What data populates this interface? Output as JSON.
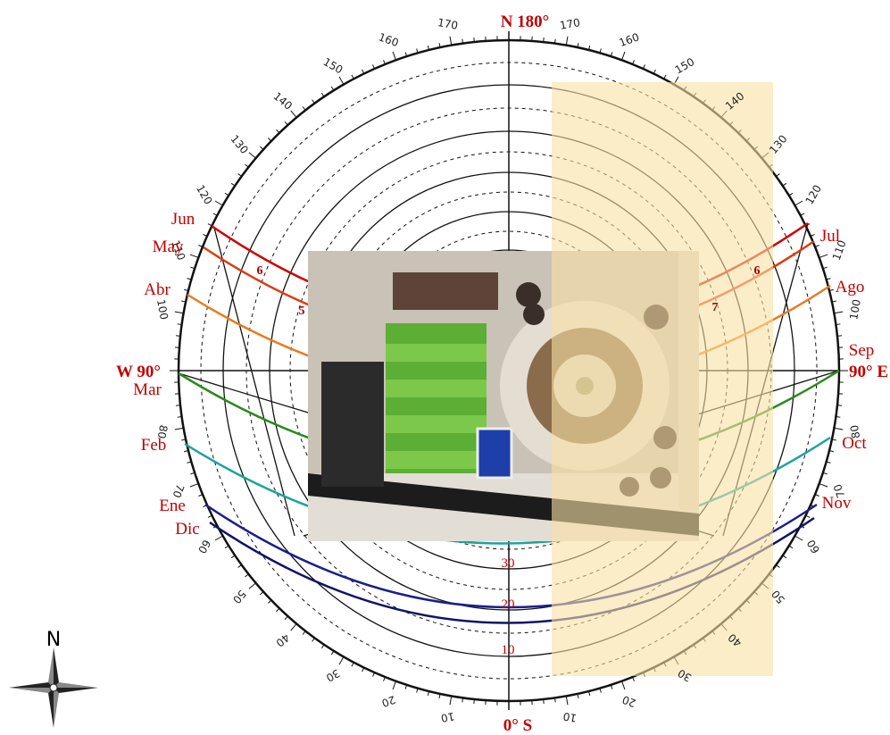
{
  "compass": {
    "north": "N 180°",
    "south": "0° S",
    "west": "W 90°",
    "east": "90° E"
  },
  "months_left": [
    "Jun",
    "May",
    "Abr",
    "Mar",
    "Feb",
    "Ene",
    "Dic"
  ],
  "months_right": [
    "Jul",
    "Ago",
    "Sep",
    "Oct",
    "Nov"
  ],
  "azimuth_labels": [
    10,
    20,
    30,
    40,
    50,
    60,
    70,
    80,
    100,
    110,
    120,
    130,
    140,
    150,
    160,
    170
  ],
  "altitude_labels": [
    10,
    20,
    30
  ],
  "hour_labels": [
    5,
    6,
    6,
    7
  ],
  "rose_label": "N"
}
